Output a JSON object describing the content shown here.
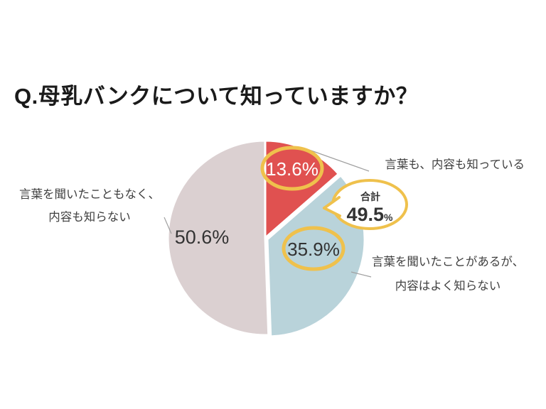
{
  "chart_data": {
    "type": "pie",
    "title": "Q.母乳バンクについて知っていますか？",
    "start_angle_deg": 0,
    "direction": "clockwise",
    "segments": [
      {
        "label": "言葉も、内容も知っている",
        "label_lines": [
          "言葉も、内容も知っている"
        ],
        "value": 13.6,
        "value_label": "13.6%",
        "color": "#e05150",
        "highlighted": true
      },
      {
        "label": "言葉を聞いたことがあるが、内容はよく知らない",
        "label_lines": [
          "言葉を聞いたことがあるが、",
          "内容はよく知らない"
        ],
        "value": 35.9,
        "value_label": "35.9%",
        "color": "#b9d3da",
        "highlighted": true
      },
      {
        "label": "言葉を聞いたこともなく、内容も知らない",
        "label_lines": [
          "言葉を聞いたこともなく、",
          "内容も知らない"
        ],
        "value": 50.6,
        "value_label": "50.6%",
        "color": "#dbd0d1",
        "highlighted": false
      }
    ],
    "callout": {
      "label": "合計",
      "value": "49.5",
      "unit": "%"
    },
    "colors": {
      "highlight_ring": "#efc14c",
      "leader_line": "#a0a0a0",
      "slice_gap": "#ffffff",
      "text_dark": "#333333",
      "text_light": "#ffffff"
    }
  }
}
